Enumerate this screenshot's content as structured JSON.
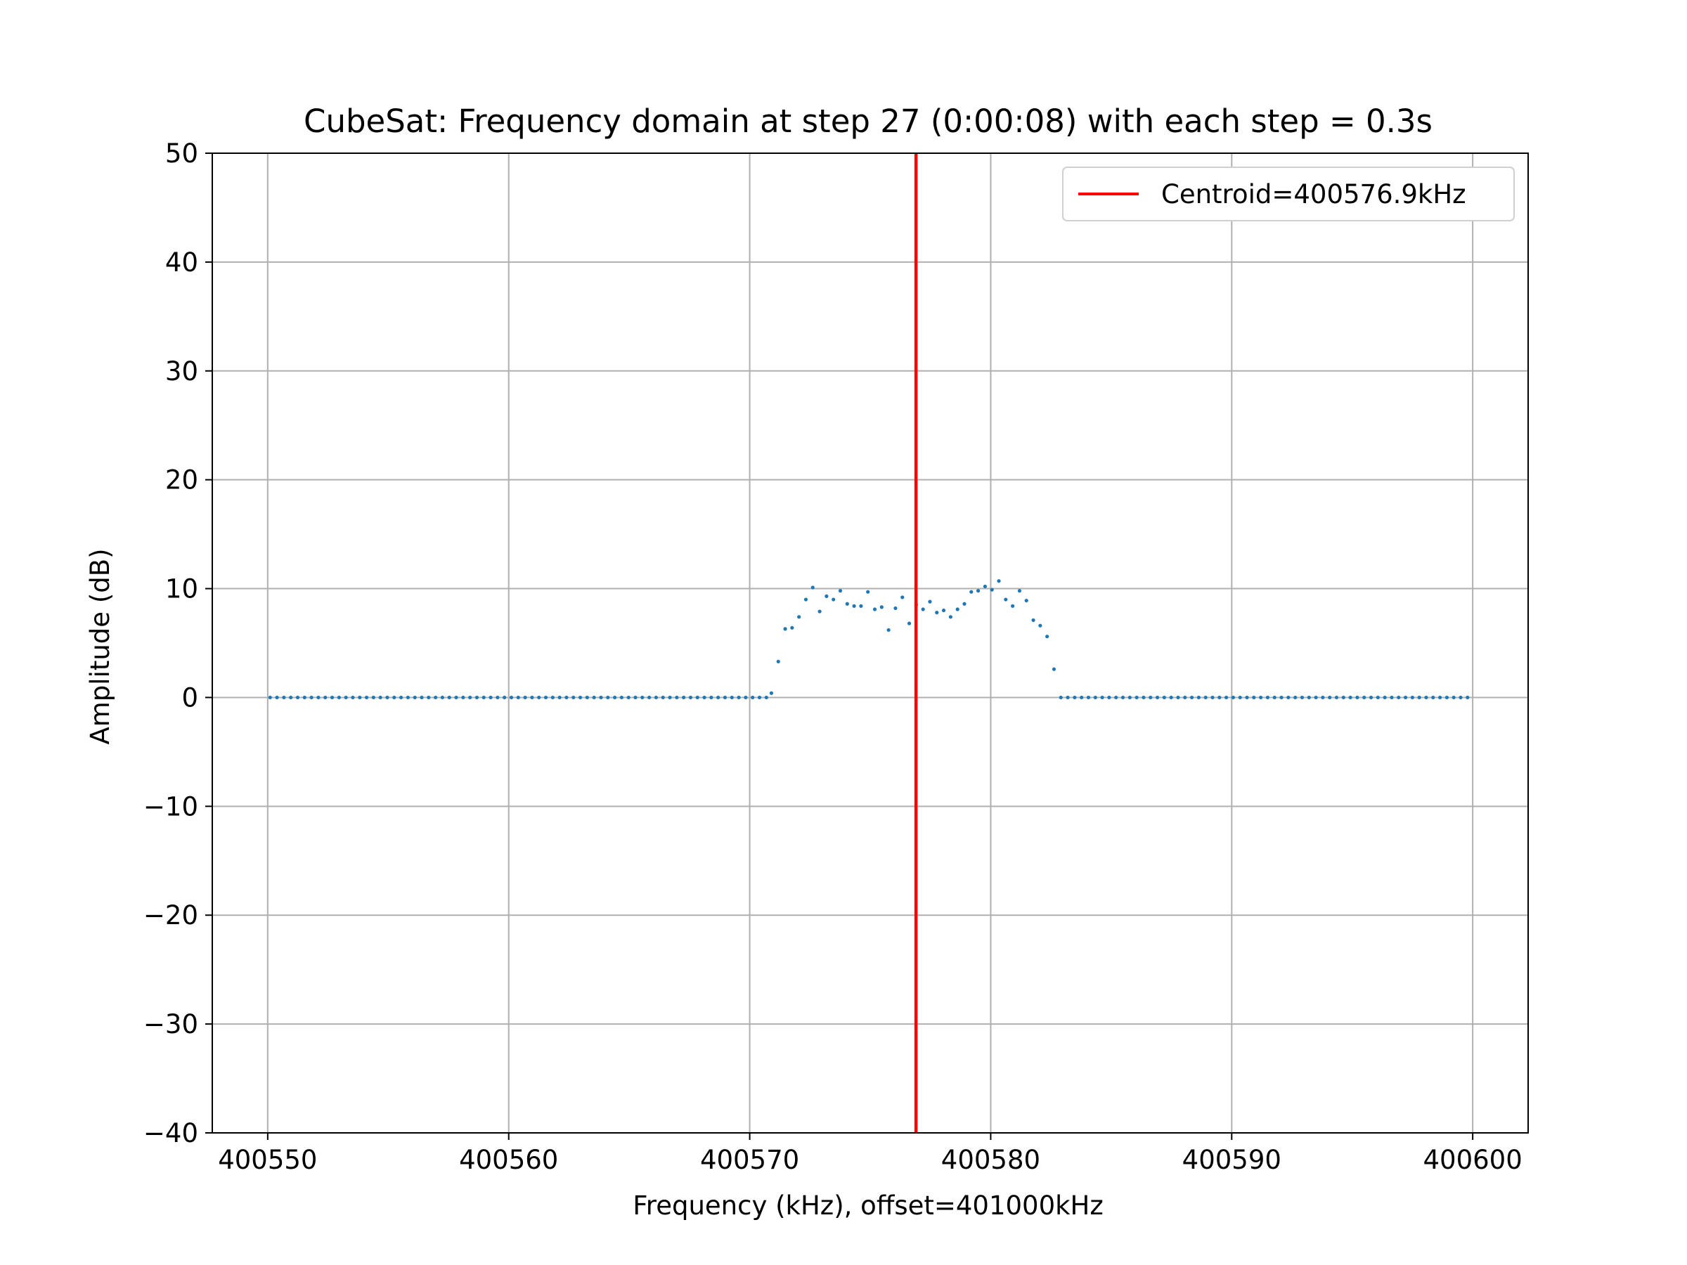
{
  "chart_data": {
    "type": "scatter",
    "title": "CubeSat: Frequency domain at step 27 (0:00:08) with each step = 0.3s",
    "xlabel": "Frequency (kHz), offset=401000kHz",
    "ylabel": "Amplitude (dB)",
    "xlim": [
      400547.7,
      400602.3
    ],
    "ylim": [
      -40,
      50
    ],
    "xticks": [
      400550,
      400560,
      400570,
      400580,
      400590,
      400600
    ],
    "xtick_labels": [
      "400550",
      "400560",
      "400570",
      "400580",
      "400590",
      "400600"
    ],
    "yticks": [
      -40,
      -30,
      -20,
      -10,
      0,
      10,
      20,
      30,
      40,
      50
    ],
    "ytick_labels": [
      "−40",
      "−30",
      "−20",
      "−10",
      "0",
      "10",
      "20",
      "30",
      "40",
      "50"
    ],
    "grid": true,
    "legend": {
      "location": "upper right",
      "entries": [
        "Centroid=400576.9kHz"
      ]
    },
    "centroid": {
      "x": 400576.9,
      "color": "#ff0000",
      "label": "Centroid=400576.9kHz"
    },
    "series": [
      {
        "color": "#1f77b4",
        "x_start": 400550.1,
        "x_step": 0.286,
        "baseline": 0,
        "signal_x_start": 400570.9,
        "y_signal": [
          0.4,
          3.3,
          6.3,
          6.4,
          7.4,
          9.0,
          10.1,
          7.9,
          9.3,
          9.0,
          9.8,
          8.6,
          8.4,
          8.4,
          9.7,
          8.1,
          8.3,
          6.2,
          8.2,
          9.2,
          6.8,
          8.5,
          8.1,
          8.8,
          7.8,
          8.0,
          7.4,
          8.1,
          8.6,
          9.7,
          9.8,
          10.2,
          9.9,
          10.7,
          9.0,
          8.4,
          9.8,
          8.9,
          7.1,
          6.6,
          5.6,
          2.6
        ]
      }
    ]
  }
}
